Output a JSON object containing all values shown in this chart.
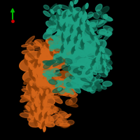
{
  "background_color": "#000000",
  "figure_size": [
    2.0,
    2.0
  ],
  "dpi": 100,
  "teal": "#1fa385",
  "orange": "#d4651a",
  "dark_teal": "#0d5c47",
  "dark_orange": "#8b3e08",
  "axes": {
    "ox": 18,
    "oy": 170,
    "green": "#00bb00",
    "blue": "#2244ff",
    "red": "#cc0000"
  }
}
